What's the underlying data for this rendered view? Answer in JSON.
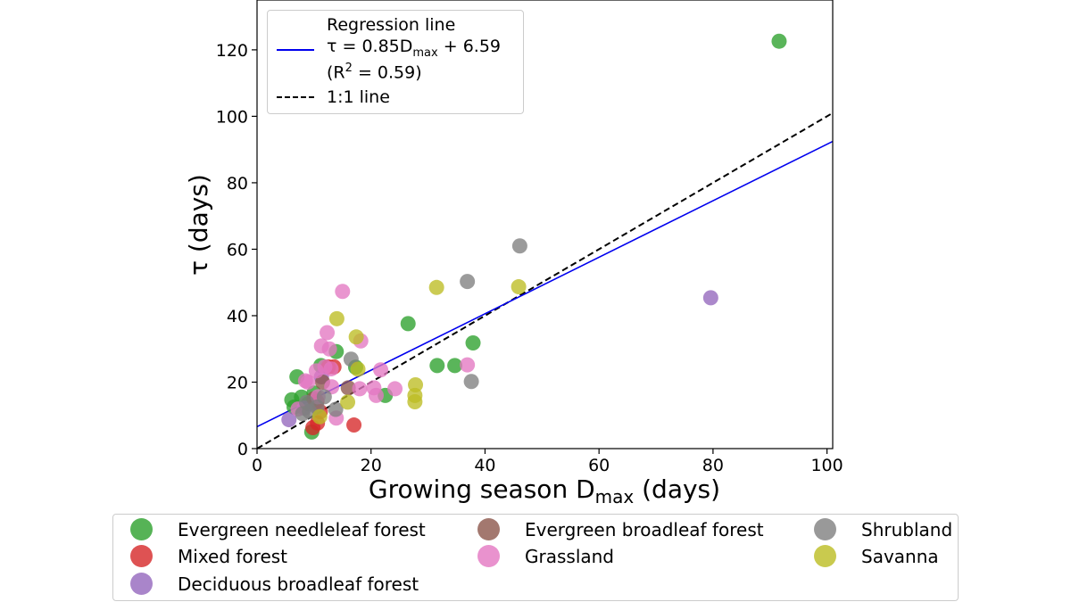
{
  "chart_data": {
    "type": "scatter",
    "xlabel_main": "Growing season D",
    "xlabel_sub": "max",
    "xlabel_tail": " (days)",
    "ylabel": "τ (days)",
    "xlim": [
      0,
      101
    ],
    "ylim": [
      0,
      135
    ],
    "xticks": [
      "0",
      "20",
      "40",
      "60",
      "80",
      "100"
    ],
    "yticks": [
      "0",
      "20",
      "40",
      "60",
      "80",
      "100",
      "120"
    ],
    "regression": {
      "slope": 0.85,
      "intercept": 6.59,
      "color": "#0000ee",
      "label_line1": "Regression line",
      "label_line2_a": "τ = 0.85D",
      "label_line2_sub": "max",
      "label_line2_b": " + 6.59",
      "label_line3_a": "(R",
      "label_line3_sup": "2",
      "label_line3_b": " = 0.59)"
    },
    "one_to_one": {
      "label": "1:1 line",
      "color": "#000000"
    },
    "categories": [
      {
        "name": "Evergreen needleleaf forest",
        "color": "#2ca02c"
      },
      {
        "name": "Mixed forest",
        "color": "#d62728"
      },
      {
        "name": "Deciduous broadleaf forest",
        "color": "#9467bd"
      },
      {
        "name": "Evergreen broadleaf forest",
        "color": "#8c564b"
      },
      {
        "name": "Grassland",
        "color": "#e377c2"
      },
      {
        "name": "Shrubland",
        "color": "#7f7f7f"
      },
      {
        "name": "Savanna",
        "color": "#bcbd22"
      }
    ],
    "series": [
      {
        "name": "Evergreen needleleaf forest",
        "points": [
          [
            91.6,
            122.6
          ],
          [
            26.5,
            37.6
          ],
          [
            37.9,
            31.8
          ],
          [
            31.6,
            25.0
          ],
          [
            34.7,
            25.0
          ],
          [
            7.0,
            21.6
          ],
          [
            22.5,
            16.0
          ],
          [
            6.1,
            14.7
          ],
          [
            7.8,
            15.5
          ],
          [
            9.0,
            13.5
          ],
          [
            10.0,
            16.7
          ],
          [
            6.5,
            12.5
          ],
          [
            9.6,
            5.0
          ],
          [
            13.9,
            29.2
          ],
          [
            17.3,
            24.5
          ],
          [
            11.2,
            25.0
          ]
        ]
      },
      {
        "name": "Mixed forest",
        "points": [
          [
            17.0,
            7.1
          ],
          [
            9.8,
            6.3
          ],
          [
            10.6,
            7.7
          ],
          [
            11.1,
            11.1
          ],
          [
            12.5,
            24.6
          ],
          [
            13.5,
            24.6
          ],
          [
            10.5,
            14.2
          ]
        ]
      },
      {
        "name": "Deciduous broadleaf forest",
        "points": [
          [
            79.6,
            45.4
          ],
          [
            5.6,
            8.7
          ],
          [
            11.3,
            21.6
          ],
          [
            8.3,
            12.2
          ]
        ]
      },
      {
        "name": "Evergreen broadleaf forest",
        "points": [
          [
            16.0,
            18.3
          ],
          [
            10.0,
            15.0
          ],
          [
            11.5,
            20.0
          ]
        ]
      },
      {
        "name": "Grassland",
        "points": [
          [
            15.0,
            47.3
          ],
          [
            12.3,
            34.9
          ],
          [
            11.3,
            30.9
          ],
          [
            12.7,
            30.0
          ],
          [
            18.2,
            32.4
          ],
          [
            21.7,
            23.7
          ],
          [
            24.2,
            18.0
          ],
          [
            18.0,
            18.0
          ],
          [
            20.5,
            18.3
          ],
          [
            20.9,
            16.0
          ],
          [
            36.9,
            25.2
          ],
          [
            8.5,
            20.4
          ],
          [
            8.9,
            20.0
          ],
          [
            10.4,
            23.4
          ],
          [
            11.9,
            24.6
          ],
          [
            13.0,
            24.0
          ],
          [
            7.2,
            11.9
          ],
          [
            13.1,
            18.6
          ],
          [
            13.9,
            9.2
          ],
          [
            10.7,
            15.6
          ]
        ]
      },
      {
        "name": "Shrubland",
        "points": [
          [
            46.1,
            61.0
          ],
          [
            36.9,
            50.3
          ],
          [
            37.6,
            20.2
          ],
          [
            16.5,
            26.9
          ],
          [
            11.8,
            15.6
          ],
          [
            13.8,
            11.8
          ],
          [
            8.0,
            10.5
          ],
          [
            8.7,
            13.9
          ],
          [
            10.5,
            12.5
          ],
          [
            9.2,
            11.2
          ]
        ]
      },
      {
        "name": "Savanna",
        "points": [
          [
            14.0,
            39.1
          ],
          [
            31.5,
            48.5
          ],
          [
            45.9,
            48.7
          ],
          [
            17.4,
            33.6
          ],
          [
            17.7,
            23.9
          ],
          [
            27.8,
            19.2
          ],
          [
            27.7,
            16.0
          ],
          [
            27.7,
            14.1
          ],
          [
            15.9,
            14.0
          ],
          [
            11.0,
            9.6
          ]
        ]
      }
    ]
  }
}
